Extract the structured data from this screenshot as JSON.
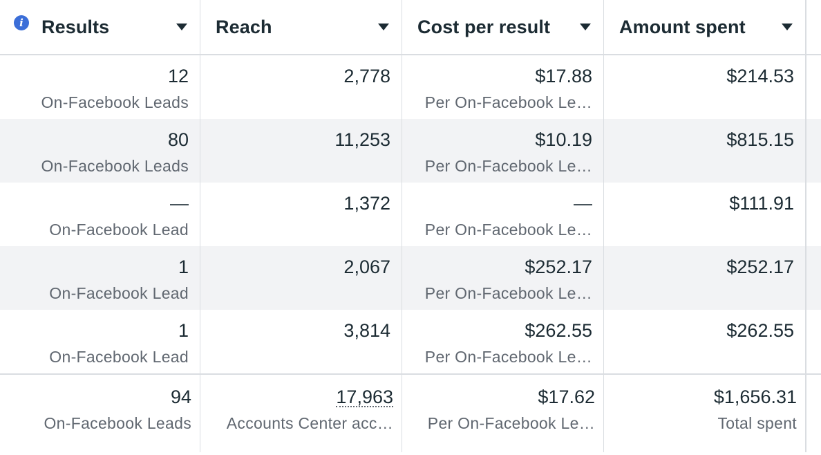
{
  "columns": [
    {
      "title": "Results"
    },
    {
      "title": "Reach"
    },
    {
      "title": "Cost per result"
    },
    {
      "title": "Amount spent"
    }
  ],
  "rows": [
    {
      "results": "12",
      "results_sub": "On-Facebook Leads",
      "reach": "2,778",
      "cost": "$17.88",
      "cost_sub": "Per On-Facebook Le…",
      "spent": "$214.53"
    },
    {
      "results": "80",
      "results_sub": "On-Facebook Leads",
      "reach": "11,253",
      "cost": "$10.19",
      "cost_sub": "Per On-Facebook Le…",
      "spent": "$815.15"
    },
    {
      "results": "—",
      "results_sub": "On-Facebook Lead",
      "reach": "1,372",
      "cost": "—",
      "cost_sub": "Per On-Facebook Le…",
      "spent": "$111.91"
    },
    {
      "results": "1",
      "results_sub": "On-Facebook Lead",
      "reach": "2,067",
      "cost": "$252.17",
      "cost_sub": "Per On-Facebook Le…",
      "spent": "$252.17"
    },
    {
      "results": "1",
      "results_sub": "On-Facebook Lead",
      "reach": "3,814",
      "cost": "$262.55",
      "cost_sub": "Per On-Facebook Le…",
      "spent": "$262.55"
    }
  ],
  "totals": {
    "results": "94",
    "results_sub": "On-Facebook Leads",
    "reach": "17,963",
    "reach_sub": "Accounts Center acc…",
    "cost": "$17.62",
    "cost_sub": "Per On-Facebook Le…",
    "spent": "$1,656.31",
    "spent_sub": "Total spent"
  }
}
